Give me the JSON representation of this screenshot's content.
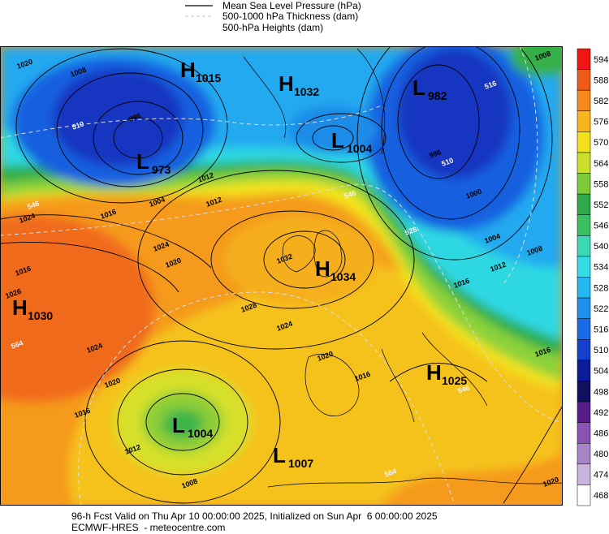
{
  "legend": {
    "items": [
      "Mean Sea Level Pressure (hPa)",
      "500-1000 hPa Thickness (dam)",
      "500-hPa Heights (dam)"
    ]
  },
  "colorbar": {
    "labels": [
      594,
      588,
      582,
      576,
      570,
      564,
      558,
      552,
      546,
      540,
      534,
      528,
      522,
      516,
      510,
      504,
      498,
      492,
      486,
      480,
      474,
      468
    ]
  },
  "centers": [
    {
      "letter": "H",
      "value": 1015
    },
    {
      "letter": "H",
      "value": 1032
    },
    {
      "letter": "L",
      "value": 982
    },
    {
      "letter": "L",
      "value": 973
    },
    {
      "letter": "L",
      "value": 1004
    },
    {
      "letter": "H",
      "value": 1034
    },
    {
      "letter": "H",
      "value": 1030
    },
    {
      "letter": "H",
      "value": 1025
    },
    {
      "letter": "L",
      "value": 1004
    },
    {
      "letter": "L",
      "value": 1007
    }
  ],
  "contour_labels": [
    1020,
    1008,
    996,
    1012,
    1004,
    1016,
    1024,
    1024,
    1016,
    1012,
    1020,
    1032,
    1028,
    1026,
    1024,
    1020,
    1024,
    1020,
    1016,
    1012,
    1008,
    1016,
    996,
    1000,
    1004,
    1008,
    1012,
    1016,
    1016,
    1020,
    1008,
    510,
    516,
    528,
    546,
    564,
    546,
    510,
    564,
    546
  ],
  "footer": {
    "line1": "96-h Fcst Valid on Thu Apr 10 00:00:00 2025, Initialized on Sun Apr  6 00:00:00 2025",
    "line2": "ECMWF-HRES  - meteocentre.com"
  }
}
